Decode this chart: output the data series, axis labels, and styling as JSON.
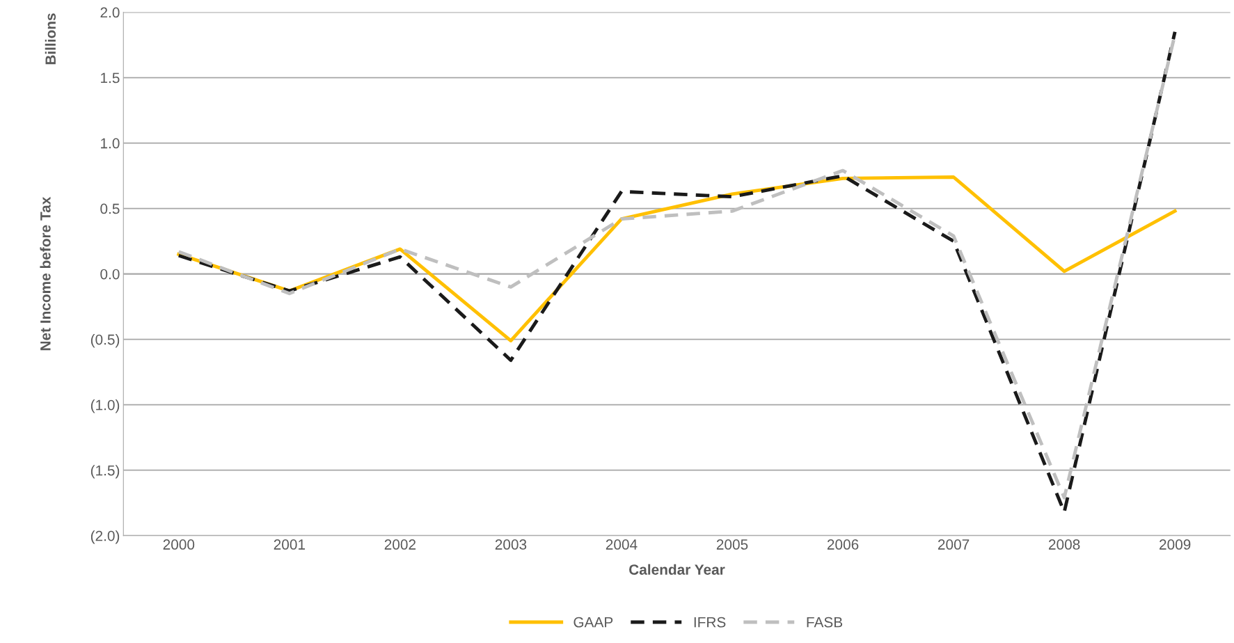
{
  "chart_data": {
    "type": "line",
    "xlabel": "Calendar Year",
    "ylabel": "Net Income before Tax",
    "annotations": [
      "Billions"
    ],
    "categories": [
      "2000",
      "2001",
      "2002",
      "2003",
      "2004",
      "2005",
      "2006",
      "2007",
      "2008",
      "2009"
    ],
    "series": [
      {
        "name": "GAAP",
        "color": "#ffc000",
        "line_style": "solid",
        "values": [
          0.15,
          -0.13,
          0.19,
          -0.51,
          0.42,
          0.61,
          0.73,
          0.74,
          0.02,
          0.48
        ]
      },
      {
        "name": "IFRS",
        "color": "#1a1a1a",
        "line_style": "dashed",
        "values": [
          0.14,
          -0.13,
          0.13,
          -0.66,
          0.63,
          0.59,
          0.75,
          0.25,
          -1.82,
          1.85
        ]
      },
      {
        "name": "FASB",
        "color": "#bfbfbf",
        "line_style": "dashed",
        "values": [
          0.17,
          -0.15,
          0.19,
          -0.1,
          0.42,
          0.48,
          0.79,
          0.29,
          -1.71,
          1.83
        ]
      }
    ],
    "ylim": [
      -2.0,
      2.0
    ],
    "yticks": [
      {
        "value": -2.0,
        "label": "(2.0)"
      },
      {
        "value": -1.5,
        "label": "(1.5)"
      },
      {
        "value": -1.0,
        "label": "(1.0)"
      },
      {
        "value": -0.5,
        "label": "(0.5)"
      },
      {
        "value": 0.0,
        "label": "0.0"
      },
      {
        "value": 0.5,
        "label": "0.5"
      },
      {
        "value": 1.0,
        "label": "1.0"
      },
      {
        "value": 1.5,
        "label": "1.5"
      },
      {
        "value": 2.0,
        "label": "2.0"
      }
    ],
    "grid": "y",
    "legend": "bottom",
    "marker": "none"
  }
}
